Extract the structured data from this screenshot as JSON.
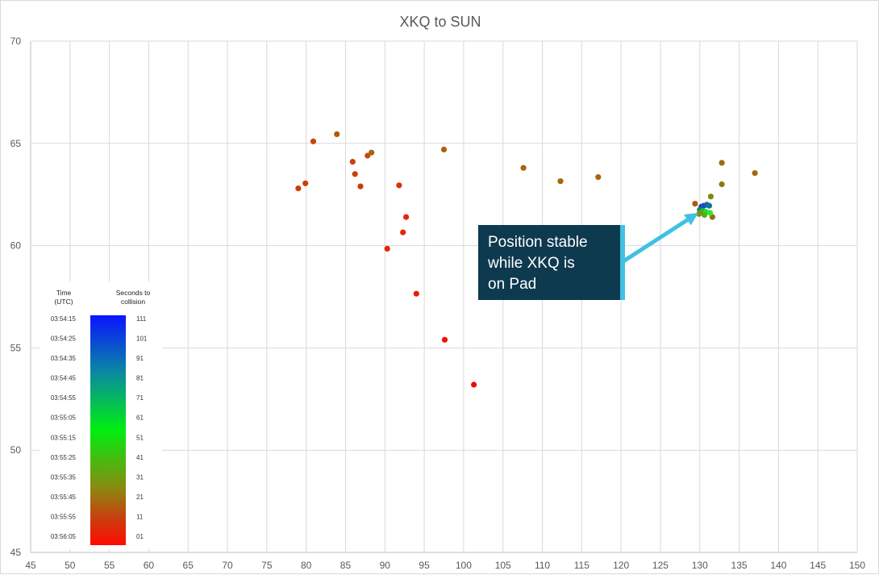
{
  "chart_data": {
    "type": "scatter",
    "title": "XKQ to SUN",
    "xlabel": "",
    "ylabel": "",
    "xlim": [
      45,
      150
    ],
    "ylim": [
      45,
      70
    ],
    "xticks": [
      45,
      50,
      55,
      60,
      65,
      70,
      75,
      80,
      85,
      90,
      95,
      100,
      105,
      110,
      115,
      120,
      125,
      130,
      135,
      140,
      145,
      150
    ],
    "yticks": [
      45,
      50,
      55,
      60,
      65,
      70
    ],
    "grid": true,
    "colors": {
      "grid": "#d9d9d9",
      "axis": "#bfbfbf",
      "callout_bg": "#0e3a4f",
      "arrow": "#3fc1e3"
    },
    "points": [
      {
        "x": 79.0,
        "y": 62.8,
        "color": "#c8400a"
      },
      {
        "x": 79.9,
        "y": 63.05,
        "color": "#c8400a"
      },
      {
        "x": 80.9,
        "y": 65.1,
        "color": "#c4450a"
      },
      {
        "x": 83.9,
        "y": 65.45,
        "color": "#b35a0c"
      },
      {
        "x": 85.9,
        "y": 64.1,
        "color": "#c8400a"
      },
      {
        "x": 86.2,
        "y": 63.5,
        "color": "#c8400a"
      },
      {
        "x": 86.9,
        "y": 62.9,
        "color": "#cc3a0a"
      },
      {
        "x": 87.8,
        "y": 64.4,
        "color": "#c04c0b"
      },
      {
        "x": 88.3,
        "y": 64.55,
        "color": "#a8620c"
      },
      {
        "x": 91.8,
        "y": 62.95,
        "color": "#d83208"
      },
      {
        "x": 92.7,
        "y": 61.4,
        "color": "#e42606"
      },
      {
        "x": 92.3,
        "y": 60.65,
        "color": "#e42606"
      },
      {
        "x": 90.3,
        "y": 59.85,
        "color": "#e42606"
      },
      {
        "x": 94.0,
        "y": 57.65,
        "color": "#ea1e05"
      },
      {
        "x": 97.6,
        "y": 55.4,
        "color": "#f01404"
      },
      {
        "x": 101.3,
        "y": 53.2,
        "color": "#f20a03"
      },
      {
        "x": 97.5,
        "y": 64.7,
        "color": "#ae600c"
      },
      {
        "x": 107.6,
        "y": 63.8,
        "color": "#ae600c"
      },
      {
        "x": 112.3,
        "y": 63.15,
        "color": "#a8640c"
      },
      {
        "x": 117.1,
        "y": 63.35,
        "color": "#a8640c"
      },
      {
        "x": 129.4,
        "y": 62.05,
        "color": "#b35a0c"
      },
      {
        "x": 137.0,
        "y": 63.55,
        "color": "#a0680c"
      },
      {
        "x": 132.8,
        "y": 64.05,
        "color": "#94700c"
      },
      {
        "x": 132.8,
        "y": 63.0,
        "color": "#8e7a0c"
      },
      {
        "x": 131.4,
        "y": 62.4,
        "color": "#7e8a0e"
      },
      {
        "x": 131.6,
        "y": 61.4,
        "color": "#9a6c0c"
      },
      {
        "x": 130.2,
        "y": 61.9,
        "color": "#1e3cc8"
      },
      {
        "x": 130.5,
        "y": 61.95,
        "color": "#1a50c0"
      },
      {
        "x": 130.9,
        "y": 62.0,
        "color": "#1560b0"
      },
      {
        "x": 131.2,
        "y": 61.95,
        "color": "#1470a0"
      },
      {
        "x": 130.0,
        "y": 61.75,
        "color": "#0a8a60"
      },
      {
        "x": 130.4,
        "y": 61.7,
        "color": "#10c040"
      },
      {
        "x": 130.8,
        "y": 61.65,
        "color": "#20e020"
      },
      {
        "x": 131.3,
        "y": 61.6,
        "color": "#30e830"
      },
      {
        "x": 130.6,
        "y": 61.5,
        "color": "#50b020"
      },
      {
        "x": 129.9,
        "y": 61.55,
        "color": "#6a9a14"
      },
      {
        "x": 130.1,
        "y": 61.6,
        "color": "#809010"
      }
    ],
    "legend": {
      "time_header": "Time (UTC)",
      "seconds_header": "Seconds to collision",
      "times": [
        "03:54:15",
        "03:54:25",
        "03:54:35",
        "03:54:45",
        "03:54:55",
        "03:55:05",
        "03:55:15",
        "03:55:25",
        "03:55:35",
        "03:55:45",
        "03:55:55",
        "03:56:05"
      ],
      "seconds": [
        "111",
        "101",
        "91",
        "81",
        "71",
        "61",
        "51",
        "41",
        "31",
        "21",
        "11",
        "01"
      ]
    },
    "annotation": {
      "text_lines": [
        "Position stable",
        "while XKQ is",
        "on Pad"
      ],
      "target": {
        "x": 129.8,
        "y": 61.6
      }
    }
  }
}
